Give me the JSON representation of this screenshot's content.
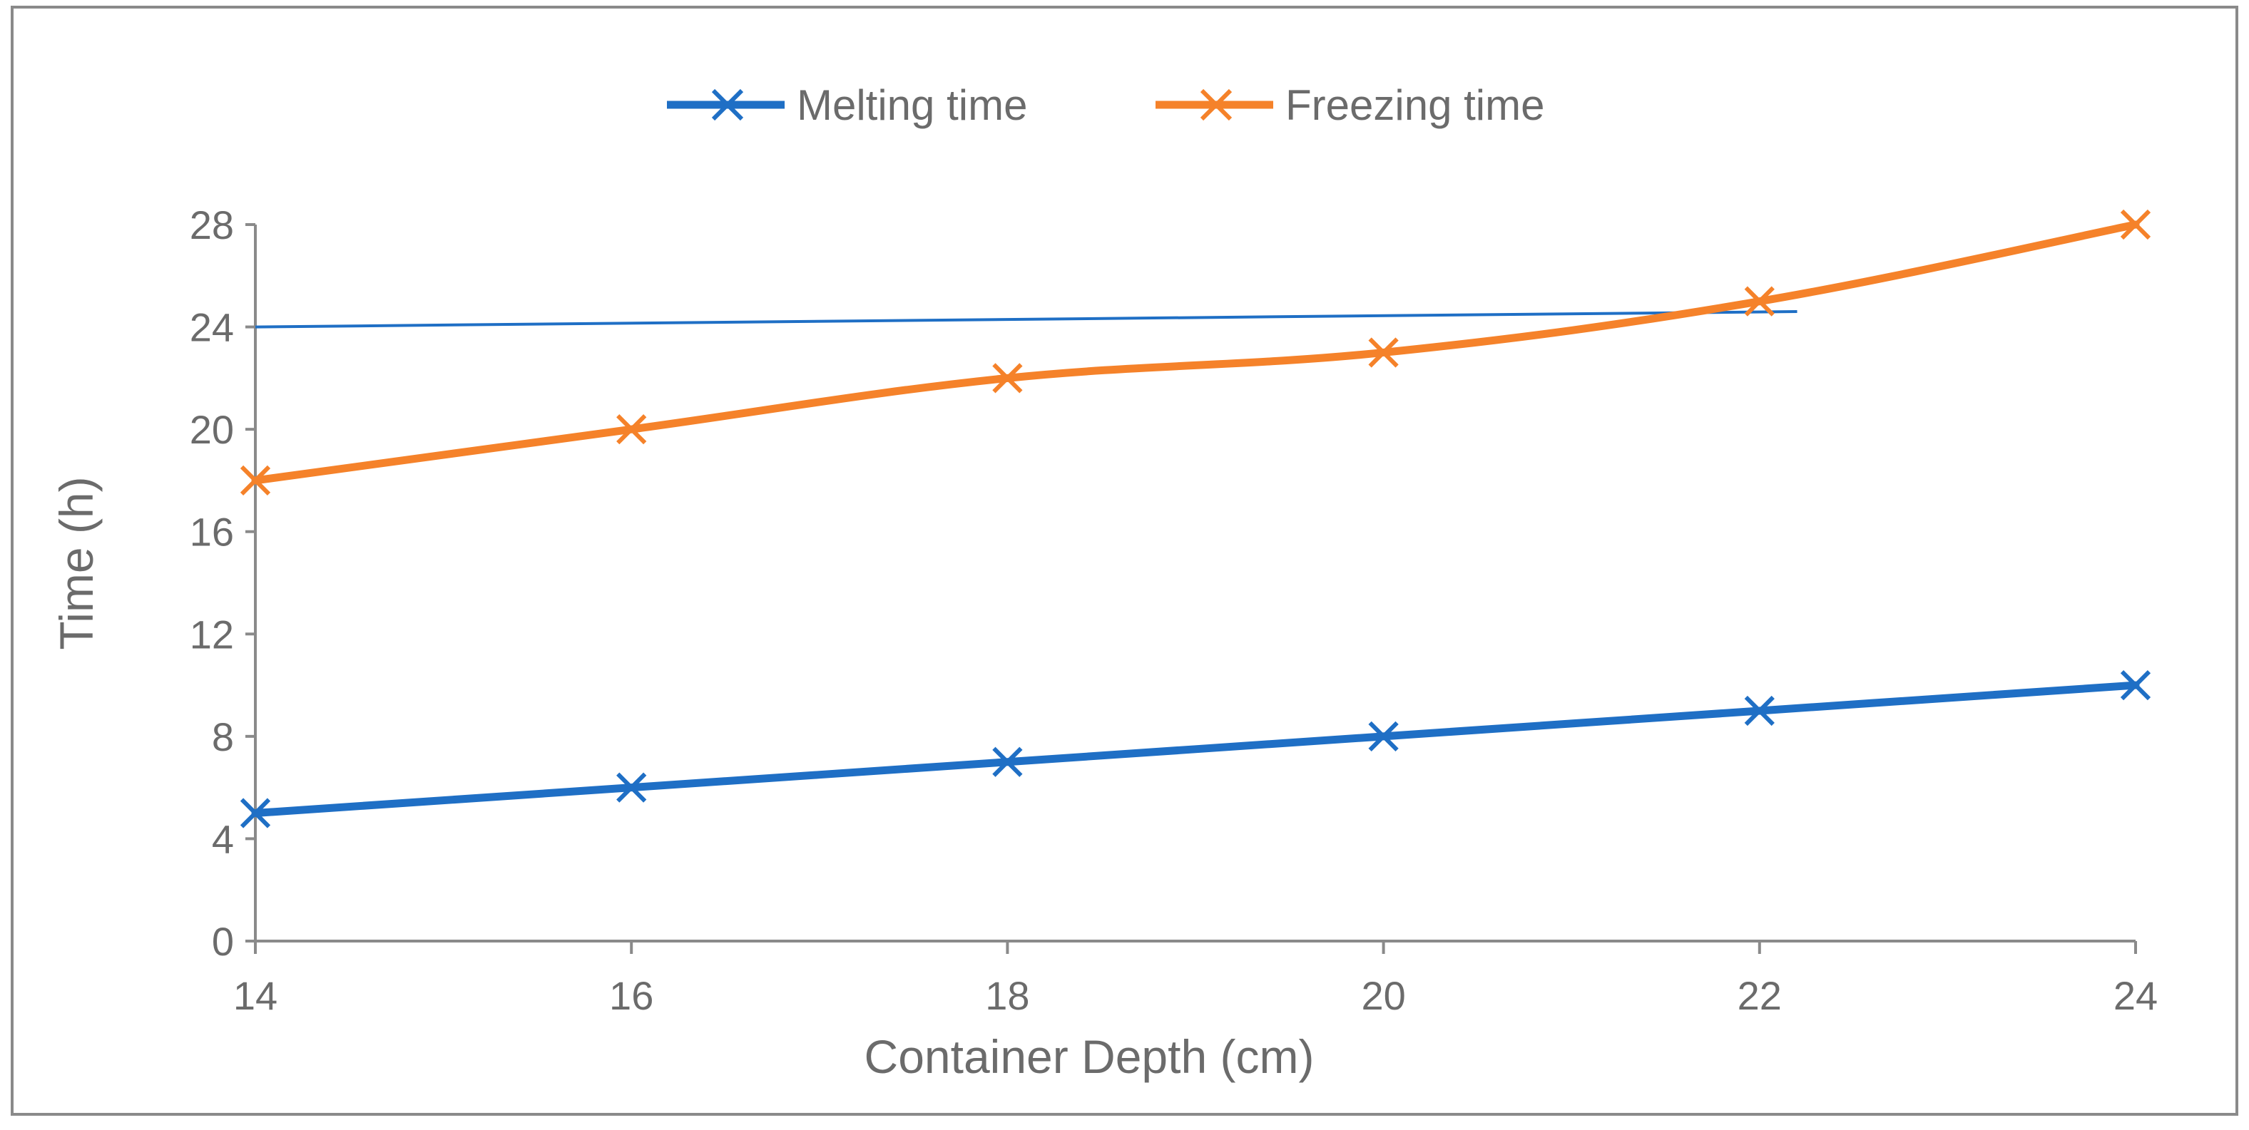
{
  "chart_data": {
    "type": "line",
    "title": "",
    "xlabel": "Container Depth (cm)",
    "ylabel": "Time (h)",
    "x": [
      14,
      16,
      18,
      20,
      22,
      24
    ],
    "xlim": [
      14,
      24
    ],
    "ylim": [
      0,
      28
    ],
    "xticks": [
      "14",
      "16",
      "18",
      "20",
      "22",
      "24"
    ],
    "yticks": [
      "0",
      "4",
      "8",
      "12",
      "16",
      "20",
      "24",
      "28"
    ],
    "legend_position": "top-center",
    "grid": false,
    "series": [
      {
        "name": "Melting time",
        "color": "#1f6fc5",
        "marker": "x",
        "values": [
          5,
          6,
          7,
          8,
          9,
          10
        ]
      },
      {
        "name": "Freezing time",
        "color": "#f5822a",
        "marker": "x",
        "values": [
          18,
          20,
          22,
          23,
          25,
          28
        ]
      }
    ],
    "annotations": [
      {
        "type": "reference-line",
        "color": "#1f6fc5",
        "from": {
          "x": 14,
          "y": 24.0
        },
        "to": {
          "x": 22.2,
          "y": 24.6
        }
      }
    ]
  }
}
